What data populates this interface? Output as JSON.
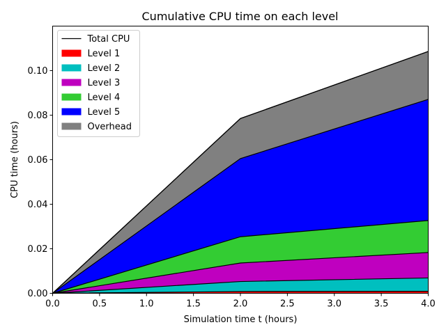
{
  "chart_data": {
    "type": "area",
    "stacked": true,
    "title": "Cumulative CPU time on each level",
    "xlabel": "Simulation time t (hours)",
    "ylabel": "CPU time (hours)",
    "xlim": [
      0.0,
      4.0
    ],
    "ylim": [
      0.0,
      0.12
    ],
    "x": [
      0.0,
      2.0,
      4.0
    ],
    "xticks": [
      0.0,
      0.5,
      1.0,
      1.5,
      2.0,
      2.5,
      3.0,
      3.5,
      4.0
    ],
    "xtick_labels": [
      "0.0",
      "0.5",
      "1.0",
      "1.5",
      "2.0",
      "2.5",
      "3.0",
      "3.5",
      "4.0"
    ],
    "yticks": [
      0.0,
      0.02,
      0.04,
      0.06,
      0.08,
      0.1
    ],
    "ytick_labels": [
      "0.00",
      "0.02",
      "0.04",
      "0.06",
      "0.08",
      "0.10"
    ],
    "series": [
      {
        "name": "Level 1",
        "color": "#ff0000",
        "values": [
          0.0,
          0.0008,
          0.0009
        ]
      },
      {
        "name": "Level 2",
        "color": "#00bfbf",
        "values": [
          0.0,
          0.0045,
          0.006
        ]
      },
      {
        "name": "Level 3",
        "color": "#bf00bf",
        "values": [
          0.0,
          0.0083,
          0.0114
        ]
      },
      {
        "name": "Level 4",
        "color": "#33cc33",
        "values": [
          0.0,
          0.0118,
          0.0144
        ]
      },
      {
        "name": "Level 5",
        "color": "#0000ff",
        "values": [
          0.0,
          0.0351,
          0.0544
        ]
      },
      {
        "name": "Overhead",
        "color": "#808080",
        "values": [
          0.0,
          0.018,
          0.0215
        ]
      }
    ],
    "total_line": {
      "name": "Total CPU",
      "color": "#000000",
      "values": [
        0.0,
        0.0785,
        0.1086
      ]
    },
    "legend": {
      "placement": "top-left",
      "entries": [
        "Total CPU",
        "Level 1",
        "Level 2",
        "Level 3",
        "Level 4",
        "Level 5",
        "Overhead"
      ]
    }
  }
}
